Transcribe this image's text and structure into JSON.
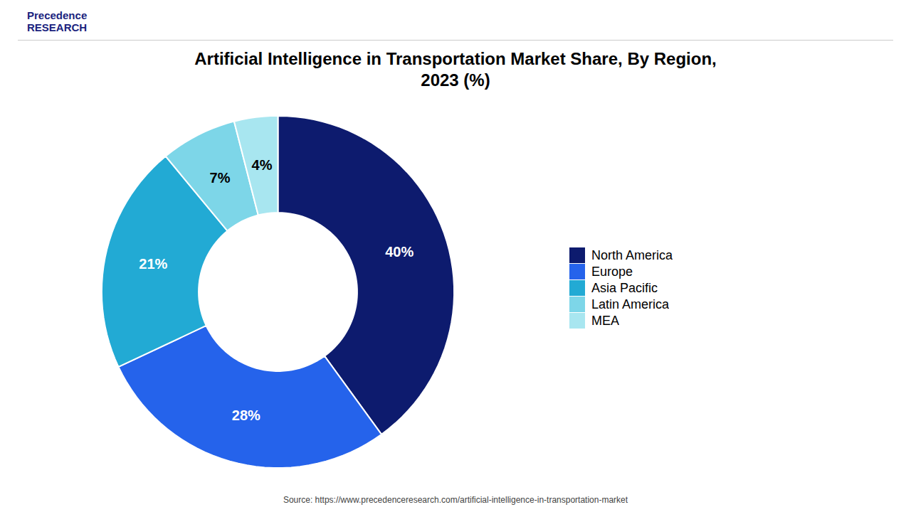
{
  "chart_data": {
    "type": "pie",
    "title": "Artificial Intelligence in Transportation Market Share, By Region,\n2023 (%)",
    "categories": [
      "North America",
      "Europe",
      "Asia Pacific",
      "Latin America",
      "MEA"
    ],
    "values": [
      40,
      28,
      21,
      7,
      4
    ],
    "value_labels": [
      "40%",
      "28%",
      "21%",
      "7%",
      "4%"
    ],
    "colors": [
      "#0d1b6e",
      "#2563eb",
      "#22aad4",
      "#7dd6e8",
      "#a8e6f0"
    ],
    "data_labels": true,
    "legend": "right",
    "annotations": [
      "Precedence\nRESEARCH",
      "Source: https://www.precedenceresearch.com/artificial-intelligence-in-transportation-market"
    ]
  }
}
